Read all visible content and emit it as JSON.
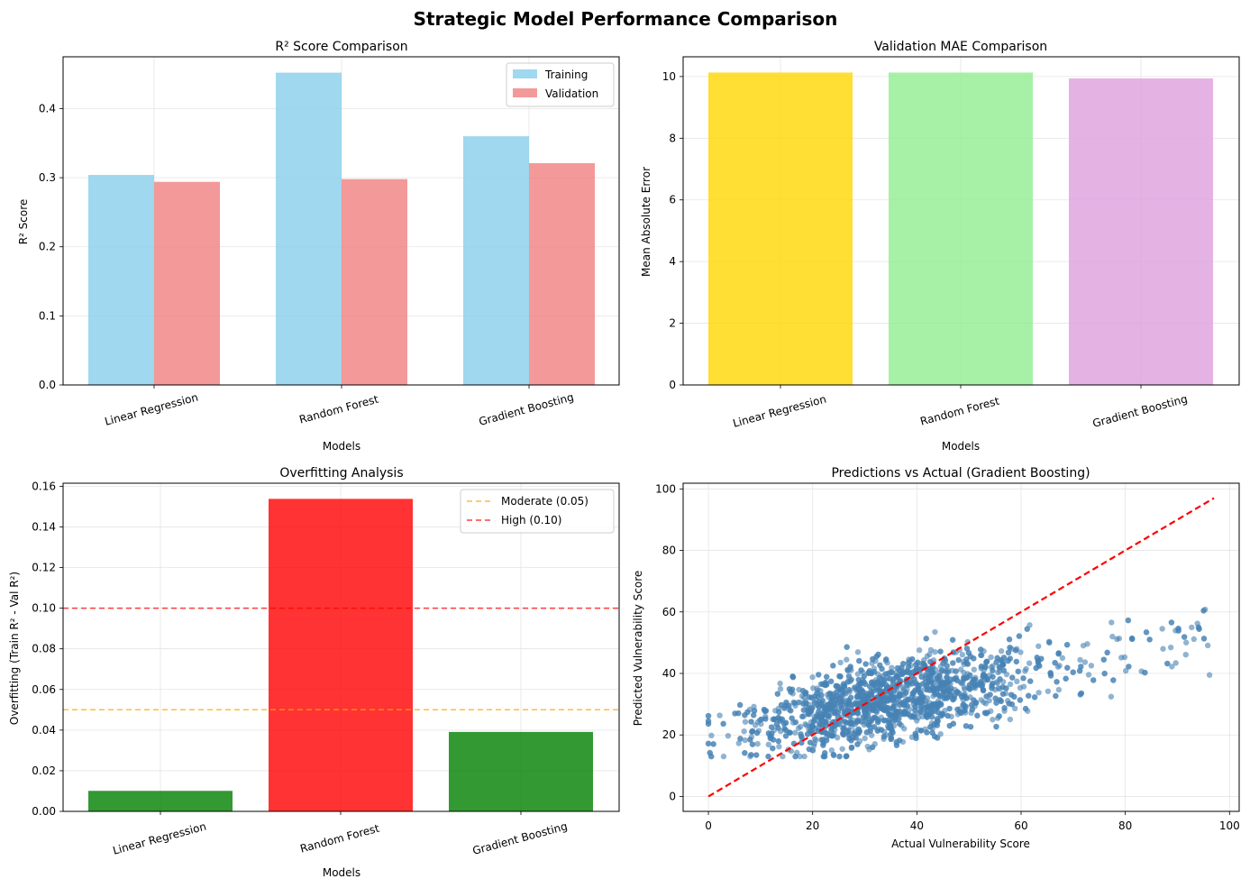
{
  "suptitle": "Strategic Model Performance Comparison",
  "models": [
    "Linear Regression",
    "Random Forest",
    "Gradient Boosting"
  ],
  "chart_data": [
    {
      "type": "bar",
      "title": "R² Score Comparison",
      "xlabel": "Models",
      "ylabel": "R² Score",
      "categories": [
        "Linear Regression",
        "Random Forest",
        "Gradient Boosting"
      ],
      "ylim": [
        0,
        0.475
      ],
      "yticks": [
        0.0,
        0.1,
        0.2,
        0.3,
        0.4
      ],
      "ytick_labels": [
        "0.0",
        "0.1",
        "0.2",
        "0.3",
        "0.4"
      ],
      "grid": true,
      "legend": "upper right",
      "series": [
        {
          "name": "Training",
          "values": [
            0.304,
            0.452,
            0.36
          ],
          "color": "#87ceeb"
        },
        {
          "name": "Validation",
          "values": [
            0.294,
            0.298,
            0.321
          ],
          "color": "#f08080"
        }
      ]
    },
    {
      "type": "bar",
      "title": "Validation MAE Comparison",
      "xlabel": "Models",
      "ylabel": "Mean Absolute Error",
      "categories": [
        "Linear Regression",
        "Random Forest",
        "Gradient Boosting"
      ],
      "values": [
        10.13,
        10.13,
        9.94
      ],
      "colors": [
        "#ffd700",
        "#90ee90",
        "#dda0dd"
      ],
      "ylim": [
        0,
        10.64
      ],
      "yticks": [
        0,
        2,
        4,
        6,
        8,
        10
      ],
      "ytick_labels": [
        "0",
        "2",
        "4",
        "6",
        "8",
        "10"
      ],
      "grid": true
    },
    {
      "type": "bar",
      "title": "Overfitting Analysis",
      "xlabel": "Models",
      "ylabel": "Overfitting (Train R² - Val R²)",
      "categories": [
        "Linear Regression",
        "Random Forest",
        "Gradient Boosting"
      ],
      "values": [
        0.0101,
        0.1538,
        0.0391
      ],
      "colors": [
        "#008000",
        "#ff0000",
        "#008000"
      ],
      "ylim": [
        0,
        0.1615
      ],
      "yticks": [
        0.0,
        0.02,
        0.04,
        0.06,
        0.08,
        0.1,
        0.12,
        0.14,
        0.16
      ],
      "ytick_labels": [
        "0.00",
        "0.02",
        "0.04",
        "0.06",
        "0.08",
        "0.10",
        "0.12",
        "0.14",
        "0.16"
      ],
      "grid": true,
      "legend": "upper right",
      "thresholds": [
        {
          "name": "Moderate (0.05)",
          "value": 0.05,
          "color": "#ffa500"
        },
        {
          "name": "High (0.10)",
          "value": 0.1,
          "color": "#ff0000"
        }
      ]
    },
    {
      "type": "scatter",
      "title": "Predictions vs Actual (Gradient Boosting)",
      "xlabel": "Actual Vulnerability Score",
      "ylabel": "Predicted Vulnerability Score",
      "xlim": [
        -4.85,
        101.85
      ],
      "ylim": [
        -4.85,
        101.85
      ],
      "xticks": [
        0,
        20,
        40,
        60,
        80,
        100
      ],
      "xtick_labels": [
        "0",
        "20",
        "40",
        "60",
        "80",
        "100"
      ],
      "yticks": [
        0,
        20,
        40,
        60,
        80,
        100
      ],
      "ytick_labels": [
        "0",
        "20",
        "40",
        "60",
        "80",
        "100"
      ],
      "grid": true,
      "point_color": "#4682b4",
      "reference_line": {
        "from": [
          0,
          0
        ],
        "to": [
          97,
          97
        ],
        "color": "#ff0000",
        "style": "dashed"
      },
      "point_cloud": {
        "count": 2000,
        "x_range": [
          0,
          97
        ],
        "slope": 0.35,
        "intercept": 19.5,
        "spread_y": 6.5,
        "y_range": [
          13,
          65
        ]
      }
    }
  ]
}
